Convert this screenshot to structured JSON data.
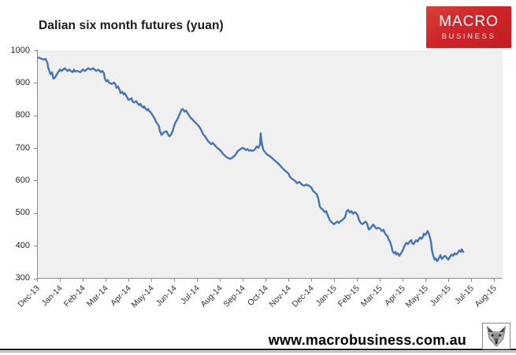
{
  "title": "Dalian six month futures (yuan)",
  "logo": {
    "line1": "MACRO",
    "line2": "BUSINESS",
    "bg_color": "#cf2429"
  },
  "footer": {
    "url": "www.macrobusiness.com.au",
    "wolf_icon": "wolf-head-engraving"
  },
  "chart_data": {
    "type": "line",
    "title": "Dalian six month futures (yuan)",
    "xlabel": "",
    "ylabel": "",
    "ylim": [
      300,
      1000
    ],
    "grid": false,
    "legend": "none",
    "plot_bg": "#f0f0f0",
    "axis_color": "#8c8c8c",
    "label_color": "#333333",
    "y_ticks": [
      1000,
      900,
      800,
      700,
      600,
      500,
      400,
      300
    ],
    "x_tick_labels": [
      "Dec-13",
      "Jan-14",
      "Feb-14",
      "Mar-14",
      "Apr-14",
      "May-14",
      "Jun-14",
      "Jul-14",
      "Aug-14",
      "Sep-14",
      "Oct-14",
      "Nov-14",
      "Dec-14",
      "Jan-15",
      "Feb-15",
      "Mar-15",
      "Apr-15",
      "May-15",
      "Jun-15",
      "Jul-15",
      "Aug-15"
    ],
    "x_unit": "months offset from Dec-13 tick",
    "series": [
      {
        "name": "Dalian six month futures price (yuan)",
        "color": "#4575b4",
        "points": [
          [
            0.07,
            978
          ],
          [
            0.17,
            975
          ],
          [
            0.28,
            972
          ],
          [
            0.38,
            974
          ],
          [
            0.45,
            962
          ],
          [
            0.48,
            950
          ],
          [
            0.52,
            941
          ],
          [
            0.55,
            933
          ],
          [
            0.59,
            927
          ],
          [
            0.66,
            933
          ],
          [
            0.69,
            921
          ],
          [
            0.72,
            913
          ],
          [
            0.79,
            917
          ],
          [
            0.86,
            925
          ],
          [
            0.93,
            934
          ],
          [
            1.0,
            941
          ],
          [
            1.07,
            937
          ],
          [
            1.14,
            941
          ],
          [
            1.21,
            945
          ],
          [
            1.28,
            941
          ],
          [
            1.34,
            937
          ],
          [
            1.41,
            941
          ],
          [
            1.48,
            937
          ],
          [
            1.55,
            933
          ],
          [
            1.62,
            941
          ],
          [
            1.66,
            935
          ],
          [
            1.76,
            937
          ],
          [
            1.9,
            933
          ],
          [
            2.0,
            941
          ],
          [
            2.1,
            937
          ],
          [
            2.24,
            945
          ],
          [
            2.34,
            941
          ],
          [
            2.45,
            945
          ],
          [
            2.59,
            937
          ],
          [
            2.69,
            941
          ],
          [
            2.79,
            933
          ],
          [
            2.86,
            937
          ],
          [
            2.93,
            929
          ],
          [
            2.97,
            913
          ],
          [
            3.03,
            905
          ],
          [
            3.1,
            909
          ],
          [
            3.14,
            901
          ],
          [
            3.28,
            897
          ],
          [
            3.38,
            901
          ],
          [
            3.45,
            893
          ],
          [
            3.48,
            885
          ],
          [
            3.55,
            889
          ],
          [
            3.62,
            877
          ],
          [
            3.66,
            869
          ],
          [
            3.72,
            873
          ],
          [
            3.79,
            865
          ],
          [
            3.83,
            869
          ],
          [
            3.9,
            861
          ],
          [
            3.97,
            853
          ],
          [
            4.0,
            848
          ],
          [
            4.14,
            853
          ],
          [
            4.17,
            844
          ],
          [
            4.24,
            840
          ],
          [
            4.34,
            844
          ],
          [
            4.41,
            836
          ],
          [
            4.48,
            832
          ],
          [
            4.52,
            836
          ],
          [
            4.59,
            828
          ],
          [
            4.66,
            824
          ],
          [
            4.69,
            828
          ],
          [
            4.76,
            820
          ],
          [
            4.83,
            816
          ],
          [
            4.86,
            820
          ],
          [
            4.93,
            812
          ],
          [
            5.0,
            808
          ],
          [
            5.03,
            804
          ],
          [
            5.1,
            796
          ],
          [
            5.17,
            788
          ],
          [
            5.21,
            780
          ],
          [
            5.28,
            774
          ],
          [
            5.34,
            766
          ],
          [
            5.38,
            752
          ],
          [
            5.45,
            740
          ],
          [
            5.55,
            748
          ],
          [
            5.66,
            752
          ],
          [
            5.72,
            744
          ],
          [
            5.79,
            736
          ],
          [
            5.86,
            740
          ],
          [
            5.93,
            752
          ],
          [
            6.0,
            768
          ],
          [
            6.07,
            780
          ],
          [
            6.14,
            788
          ],
          [
            6.24,
            804
          ],
          [
            6.31,
            816
          ],
          [
            6.38,
            820
          ],
          [
            6.45,
            812
          ],
          [
            6.52,
            815
          ],
          [
            6.59,
            807
          ],
          [
            6.66,
            800
          ],
          [
            6.72,
            793
          ],
          [
            6.79,
            789
          ],
          [
            6.86,
            783
          ],
          [
            6.93,
            778
          ],
          [
            7.0,
            774
          ],
          [
            7.07,
            768
          ],
          [
            7.14,
            761
          ],
          [
            7.21,
            752
          ],
          [
            7.28,
            741
          ],
          [
            7.34,
            737
          ],
          [
            7.41,
            730
          ],
          [
            7.48,
            722
          ],
          [
            7.55,
            717
          ],
          [
            7.62,
            712
          ],
          [
            7.69,
            716
          ],
          [
            7.76,
            710
          ],
          [
            7.83,
            705
          ],
          [
            7.9,
            700
          ],
          [
            7.97,
            696
          ],
          [
            8.03,
            692
          ],
          [
            8.1,
            686
          ],
          [
            8.17,
            680
          ],
          [
            8.24,
            676
          ],
          [
            8.31,
            671
          ],
          [
            8.38,
            669
          ],
          [
            8.45,
            667
          ],
          [
            8.52,
            669
          ],
          [
            8.59,
            673
          ],
          [
            8.66,
            677
          ],
          [
            8.72,
            683
          ],
          [
            8.79,
            691
          ],
          [
            8.86,
            694
          ],
          [
            8.93,
            698
          ],
          [
            9.0,
            701
          ],
          [
            9.07,
            698
          ],
          [
            9.14,
            694
          ],
          [
            9.21,
            697
          ],
          [
            9.28,
            692
          ],
          [
            9.34,
            694
          ],
          [
            9.41,
            691
          ],
          [
            9.48,
            693
          ],
          [
            9.55,
            697
          ],
          [
            9.62,
            705
          ],
          [
            9.69,
            701
          ],
          [
            9.76,
            710
          ],
          [
            9.79,
            745
          ],
          [
            9.83,
            718
          ],
          [
            9.9,
            695
          ],
          [
            9.97,
            688
          ],
          [
            10.03,
            683
          ],
          [
            10.1,
            679
          ],
          [
            10.21,
            674
          ],
          [
            10.31,
            668
          ],
          [
            10.41,
            661
          ],
          [
            10.52,
            655
          ],
          [
            10.62,
            648
          ],
          [
            10.72,
            640
          ],
          [
            10.83,
            632
          ],
          [
            10.93,
            626
          ],
          [
            11.0,
            622
          ],
          [
            11.07,
            612
          ],
          [
            11.17,
            605
          ],
          [
            11.28,
            600
          ],
          [
            11.38,
            592
          ],
          [
            11.48,
            596
          ],
          [
            11.59,
            588
          ],
          [
            11.69,
            584
          ],
          [
            11.79,
            588
          ],
          [
            11.9,
            584
          ],
          [
            12.0,
            579
          ],
          [
            12.1,
            567
          ],
          [
            12.17,
            563
          ],
          [
            12.24,
            558
          ],
          [
            12.31,
            545
          ],
          [
            12.38,
            520
          ],
          [
            12.45,
            514
          ],
          [
            12.52,
            510
          ],
          [
            12.59,
            503
          ],
          [
            12.66,
            506
          ],
          [
            12.72,
            494
          ],
          [
            12.79,
            482
          ],
          [
            12.86,
            474
          ],
          [
            12.93,
            470
          ],
          [
            13.0,
            466
          ],
          [
            13.07,
            470
          ],
          [
            13.14,
            474
          ],
          [
            13.21,
            470
          ],
          [
            13.28,
            475
          ],
          [
            13.34,
            478
          ],
          [
            13.41,
            482
          ],
          [
            13.48,
            487
          ],
          [
            13.55,
            506
          ],
          [
            13.62,
            510
          ],
          [
            13.69,
            502
          ],
          [
            13.76,
            506
          ],
          [
            13.83,
            498
          ],
          [
            13.9,
            503
          ],
          [
            13.97,
            500
          ],
          [
            14.03,
            494
          ],
          [
            14.1,
            478
          ],
          [
            14.17,
            470
          ],
          [
            14.24,
            466
          ],
          [
            14.31,
            470
          ],
          [
            14.38,
            474
          ],
          [
            14.45,
            468
          ],
          [
            14.52,
            450
          ],
          [
            14.59,
            453
          ],
          [
            14.66,
            460
          ],
          [
            14.72,
            465
          ],
          [
            14.79,
            458
          ],
          [
            14.86,
            452
          ],
          [
            14.93,
            455
          ],
          [
            15.0,
            453
          ],
          [
            15.1,
            445
          ],
          [
            15.17,
            449
          ],
          [
            15.21,
            441
          ],
          [
            15.28,
            433
          ],
          [
            15.34,
            429
          ],
          [
            15.38,
            421
          ],
          [
            15.45,
            413
          ],
          [
            15.52,
            397
          ],
          [
            15.55,
            385
          ],
          [
            15.62,
            377
          ],
          [
            15.69,
            381
          ],
          [
            15.72,
            373
          ],
          [
            15.79,
            377
          ],
          [
            15.86,
            369
          ],
          [
            15.9,
            373
          ],
          [
            15.97,
            381
          ],
          [
            16.03,
            389
          ],
          [
            16.07,
            397
          ],
          [
            16.1,
            401
          ],
          [
            16.17,
            409
          ],
          [
            16.24,
            405
          ],
          [
            16.31,
            413
          ],
          [
            16.38,
            417
          ],
          [
            16.41,
            409
          ],
          [
            16.48,
            405
          ],
          [
            16.55,
            413
          ],
          [
            16.59,
            417
          ],
          [
            16.66,
            413
          ],
          [
            16.72,
            421
          ],
          [
            16.76,
            425
          ],
          [
            16.83,
            421
          ],
          [
            16.9,
            429
          ],
          [
            16.93,
            437
          ],
          [
            17.0,
            433
          ],
          [
            17.07,
            441
          ],
          [
            17.1,
            445
          ],
          [
            17.17,
            433
          ],
          [
            17.24,
            413
          ],
          [
            17.28,
            389
          ],
          [
            17.34,
            369
          ],
          [
            17.41,
            357
          ],
          [
            17.45,
            361
          ],
          [
            17.52,
            353
          ],
          [
            17.59,
            361
          ],
          [
            17.66,
            371
          ],
          [
            17.72,
            359
          ],
          [
            17.79,
            365
          ],
          [
            17.86,
            369
          ],
          [
            17.93,
            363
          ],
          [
            18.0,
            357
          ],
          [
            18.07,
            365
          ],
          [
            18.14,
            373
          ],
          [
            18.21,
            369
          ],
          [
            18.28,
            377
          ],
          [
            18.34,
            373
          ],
          [
            18.41,
            377
          ],
          [
            18.48,
            385
          ],
          [
            18.55,
            381
          ],
          [
            18.59,
            389
          ],
          [
            18.62,
            385
          ],
          [
            18.66,
            381
          ]
        ]
      }
    ]
  }
}
